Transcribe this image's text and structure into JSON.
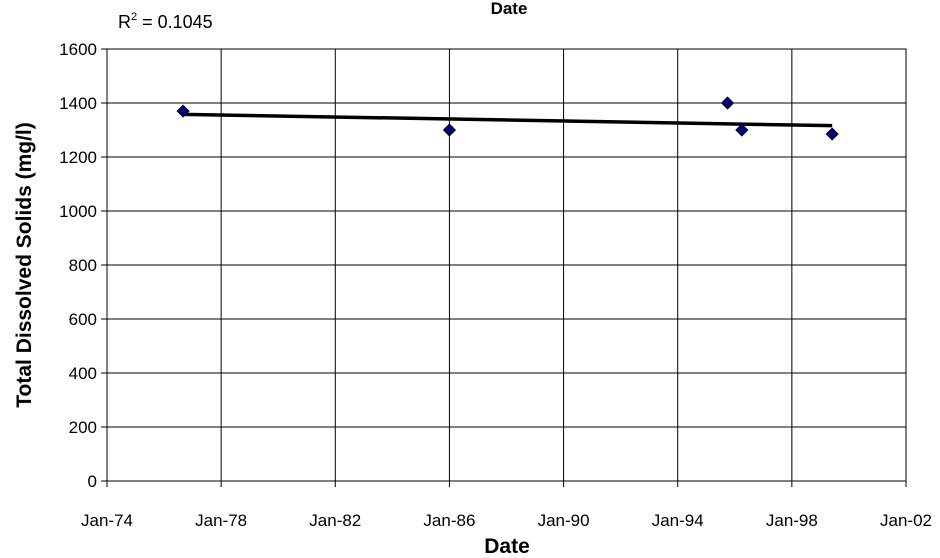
{
  "chart_data": {
    "type": "scatter",
    "title": "",
    "clipped_top_label": "Date",
    "xlabel": "Date",
    "ylabel": "Total Dissolved Solids (mg/l)",
    "x_tick_labels": [
      "Jan-74",
      "Jan-78",
      "Jan-82",
      "Jan-86",
      "Jan-90",
      "Jan-94",
      "Jan-98",
      "Jan-02"
    ],
    "x_ticks": [
      "1974-01-01",
      "1978-01-01",
      "1982-01-01",
      "1986-01-01",
      "1990-01-01",
      "1994-01-01",
      "1998-01-01",
      "2002-01-01"
    ],
    "xlim": [
      "1974-01-01",
      "2002-01-01"
    ],
    "y_ticks": [
      0,
      200,
      400,
      600,
      800,
      1000,
      1200,
      1400,
      1600
    ],
    "ylim": [
      0,
      1600
    ],
    "grid": true,
    "series": [
      {
        "marker": "diamond",
        "color": "#000080",
        "points": [
          {
            "x": "1976-09-01",
            "y": 1370
          },
          {
            "x": "1986-01-01",
            "y": 1300
          },
          {
            "x": "1995-10-01",
            "y": 1400
          },
          {
            "x": "1996-04-01",
            "y": 1300
          },
          {
            "x": "1999-06-01",
            "y": 1285
          }
        ]
      }
    ],
    "trendline": {
      "type": "linear",
      "color": "#000000",
      "start": {
        "x": "1976-09-01",
        "y": 1358
      },
      "end": {
        "x": "1999-06-01",
        "y": 1316
      },
      "r2_label": "R",
      "r2_sup": "2",
      "r2_value": " = 0.1045"
    }
  }
}
